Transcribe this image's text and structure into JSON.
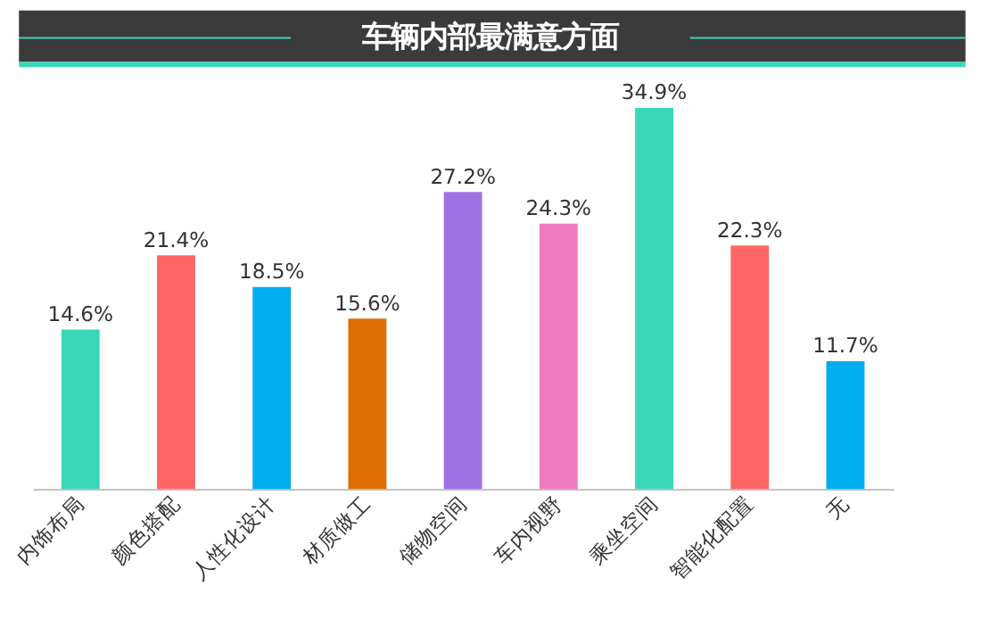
{
  "chart_data": {
    "type": "bar",
    "title": "车辆内部最满意方面",
    "categories": [
      "内饰布局",
      "颜色搭配",
      "人性化设计",
      "材质做工",
      "储物空间",
      "车内视野",
      "乘坐空间",
      "智能化配置",
      "无"
    ],
    "values": [
      14.6,
      21.4,
      18.5,
      15.6,
      27.2,
      24.3,
      34.9,
      22.3,
      11.7
    ],
    "colors": [
      "#3ad6b8",
      "#ff6666",
      "#00aef0",
      "#dd7000",
      "#9f72e4",
      "#f07abf",
      "#3ad6b8",
      "#ff6666",
      "#00aef0"
    ],
    "value_labels": [
      "14.6%",
      "21.4%",
      "18.5%",
      "15.6%",
      "27.2%",
      "24.3%",
      "34.9%",
      "22.3%",
      "11.7%"
    ]
  }
}
